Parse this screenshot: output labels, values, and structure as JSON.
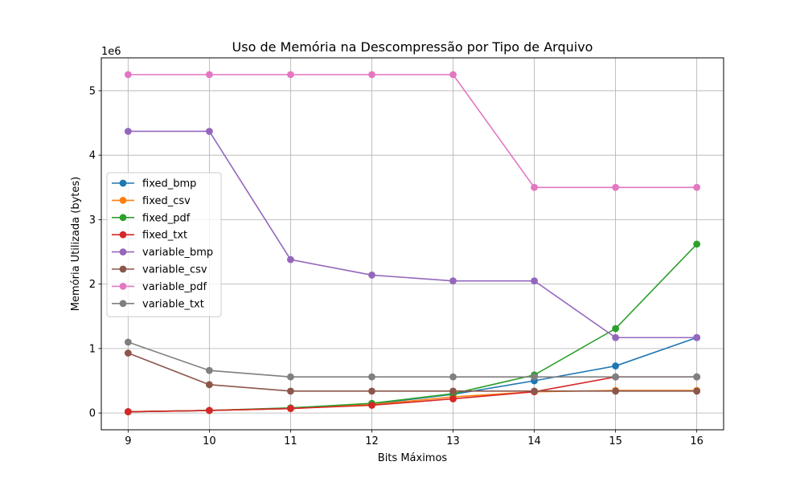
{
  "chart_data": {
    "type": "line",
    "title": "Uso de Memória na Descompressão por Tipo de Arquivo",
    "xlabel": "Bits Máximos",
    "ylabel": "Memória Utilizada (bytes)",
    "y_multiplier": "1e6",
    "x": [
      9,
      10,
      11,
      12,
      13,
      14,
      15,
      16
    ],
    "xlim": [
      8.67,
      16.33
    ],
    "ylim": [
      -0.26,
      5.51
    ],
    "x_ticks": [
      "9",
      "10",
      "11",
      "12",
      "13",
      "14",
      "15",
      "16"
    ],
    "y_ticks": [
      "0",
      "1",
      "2",
      "3",
      "4",
      "5"
    ],
    "grid": true,
    "legend_position": "center-left",
    "series": [
      {
        "name": "fixed_bmp",
        "color": "#1f77b4",
        "values": [
          0.02,
          0.04,
          0.07,
          0.14,
          0.29,
          0.5,
          0.73,
          1.17
        ]
      },
      {
        "name": "fixed_csv",
        "color": "#ff7f0e",
        "values": [
          0.02,
          0.04,
          0.07,
          0.13,
          0.25,
          0.33,
          0.35,
          0.35
        ]
      },
      {
        "name": "fixed_pdf",
        "color": "#2ca02c",
        "values": [
          0.02,
          0.04,
          0.08,
          0.15,
          0.3,
          0.59,
          1.31,
          2.62
        ]
      },
      {
        "name": "fixed_txt",
        "color": "#d62728",
        "values": [
          0.02,
          0.04,
          0.07,
          0.12,
          0.22,
          0.33,
          0.56,
          0.56
        ]
      },
      {
        "name": "variable_bmp",
        "color": "#9467bd",
        "values": [
          4.37,
          4.37,
          2.38,
          2.14,
          2.05,
          2.05,
          1.17,
          1.17
        ]
      },
      {
        "name": "variable_csv",
        "color": "#8c564b",
        "values": [
          0.93,
          0.44,
          0.34,
          0.34,
          0.34,
          0.34,
          0.34,
          0.34
        ]
      },
      {
        "name": "variable_pdf",
        "color": "#e377c2",
        "values": [
          5.25,
          5.25,
          5.25,
          5.25,
          5.25,
          3.5,
          3.5,
          3.5
        ]
      },
      {
        "name": "variable_txt",
        "color": "#7f7f7f",
        "values": [
          1.1,
          0.66,
          0.56,
          0.56,
          0.56,
          0.56,
          0.56,
          0.56
        ]
      }
    ]
  }
}
